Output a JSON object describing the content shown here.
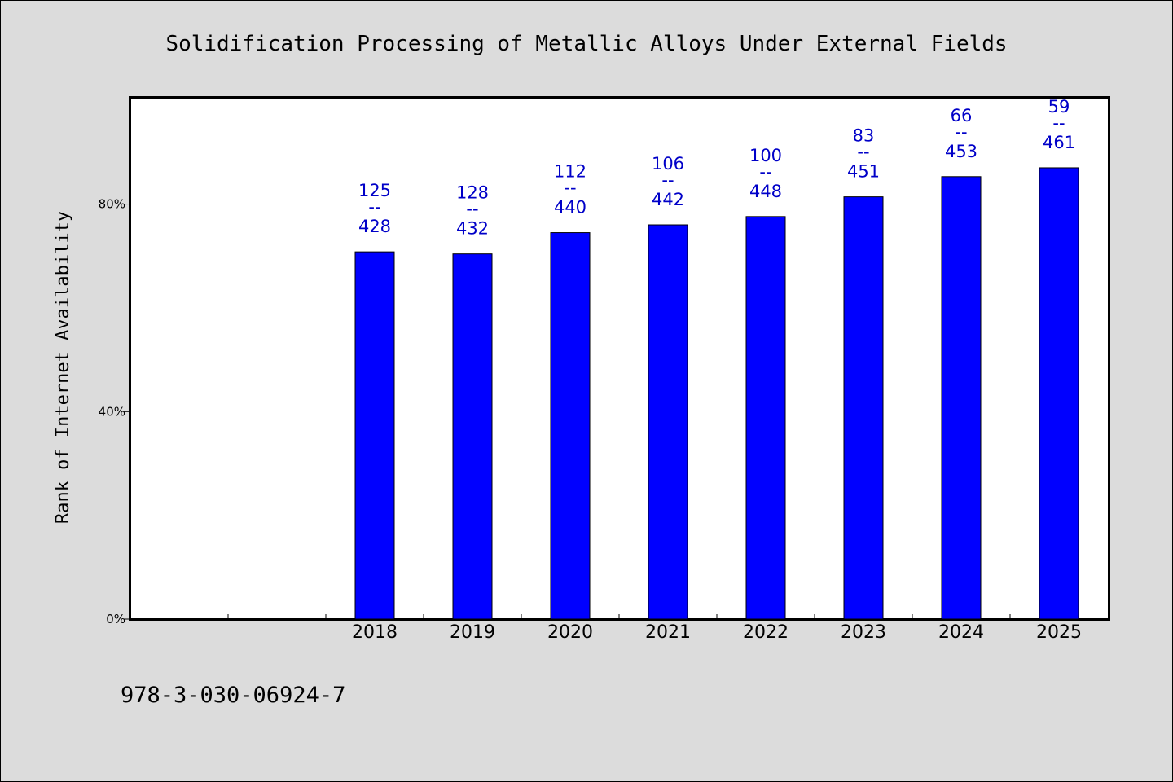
{
  "chart_data": {
    "type": "bar",
    "title": "Solidification Processing of Metallic Alloys Under External Fields",
    "ylabel": "Rank of Internet Availability",
    "xlabel": "",
    "categories": [
      "2018",
      "2019",
      "2020",
      "2021",
      "2022",
      "2023",
      "2024",
      "2025"
    ],
    "values": [
      70.8,
      70.4,
      74.5,
      76.0,
      77.6,
      81.4,
      85.3,
      87.0
    ],
    "bar_labels": [
      {
        "rank": "125",
        "sep": "--",
        "total": "428"
      },
      {
        "rank": "128",
        "sep": "--",
        "total": "432"
      },
      {
        "rank": "112",
        "sep": "--",
        "total": "440"
      },
      {
        "rank": "106",
        "sep": "--",
        "total": "442"
      },
      {
        "rank": "100",
        "sep": "--",
        "total": "448"
      },
      {
        "rank": "83",
        "sep": "--",
        "total": "451"
      },
      {
        "rank": "66",
        "sep": "--",
        "total": "453"
      },
      {
        "rank": "59",
        "sep": "--",
        "total": "461"
      }
    ],
    "yticks": [
      {
        "value": 0,
        "label": "0%"
      },
      {
        "value": 40,
        "label": "40%"
      },
      {
        "value": 80,
        "label": "80%"
      }
    ],
    "ylim": [
      0,
      100.5
    ],
    "x_slots": 10,
    "first_category_slot": 2,
    "grid": false,
    "bar_color": "#0000ff",
    "label_color": "#0000c8",
    "background_color": "#dcdcdc"
  },
  "footer": {
    "isbn": "978-3-030-06924-7"
  }
}
